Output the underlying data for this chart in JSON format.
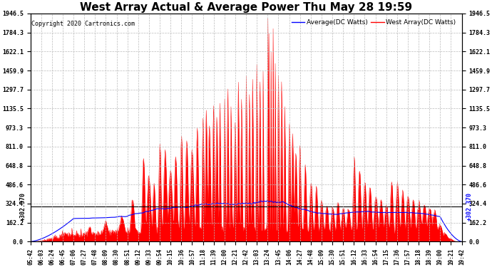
{
  "title": "West Array Actual & Average Power Thu May 28 19:59",
  "copyright": "Copyright 2020 Cartronics.com",
  "legend_avg": "Average(DC Watts)",
  "legend_west": "West Array(DC Watts)",
  "legend_avg_color": "blue",
  "legend_west_color": "red",
  "ymin": 0.0,
  "ymax": 1946.5,
  "yticks": [
    0.0,
    162.2,
    324.4,
    486.6,
    648.8,
    811.0,
    973.3,
    1135.5,
    1297.7,
    1459.9,
    1622.1,
    1784.3,
    1946.5
  ],
  "hline_value": 302.37,
  "hline_label": "+302.370",
  "background_color": "#ffffff",
  "grid_color": "#aaaaaa",
  "title_fontsize": 11,
  "xtick_labels": [
    "05:42",
    "06:03",
    "06:24",
    "06:45",
    "07:06",
    "07:27",
    "07:48",
    "08:09",
    "08:30",
    "08:51",
    "09:12",
    "09:33",
    "09:54",
    "10:15",
    "10:36",
    "10:57",
    "11:18",
    "11:39",
    "12:00",
    "12:21",
    "12:42",
    "13:03",
    "13:24",
    "13:45",
    "14:06",
    "14:27",
    "14:48",
    "15:09",
    "15:30",
    "15:51",
    "16:12",
    "16:33",
    "16:54",
    "17:15",
    "17:36",
    "17:57",
    "18:18",
    "18:39",
    "19:00",
    "19:21",
    "19:42"
  ],
  "n_data": 820,
  "seed": 7
}
